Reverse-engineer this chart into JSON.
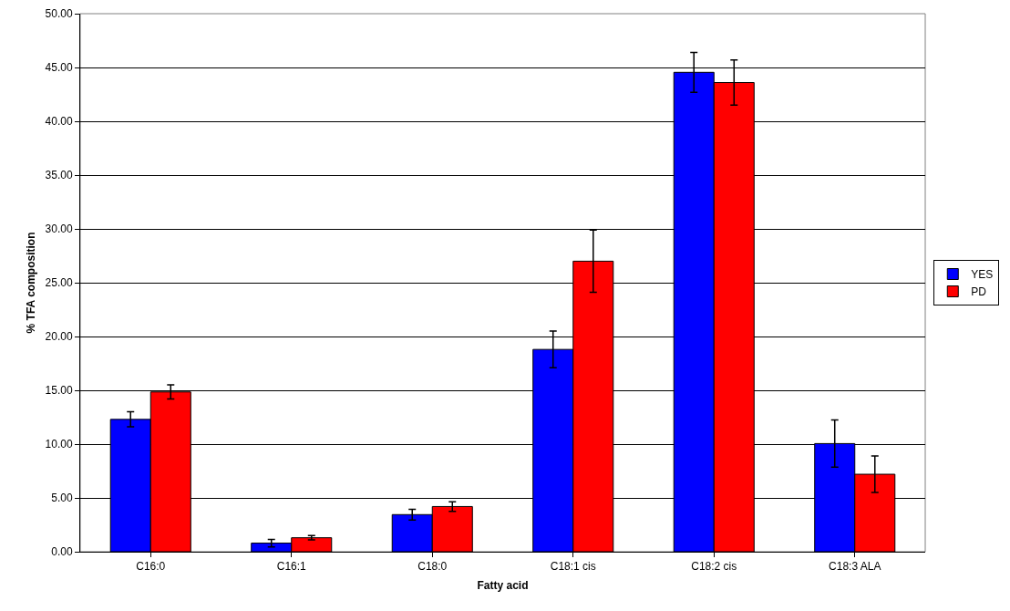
{
  "chart_data": {
    "type": "bar",
    "xlabel": "Fatty acid",
    "ylabel": "% TFA composition",
    "categories": [
      "C16:0",
      "C16:1",
      "C18:0",
      "C18:1 cis",
      "C18:2 cis",
      "C18:3 ALA"
    ],
    "series": [
      {
        "name": "YES",
        "color": "#0000ff",
        "values": [
          12.3,
          0.8,
          3.45,
          18.8,
          44.55,
          10.05
        ],
        "errors": [
          0.7,
          0.35,
          0.5,
          1.7,
          1.85,
          2.2
        ]
      },
      {
        "name": "PD",
        "color": "#ff0000",
        "values": [
          14.85,
          1.3,
          4.2,
          27.0,
          43.6,
          7.2
        ],
        "errors": [
          0.65,
          0.2,
          0.45,
          2.9,
          2.1,
          1.7
        ]
      }
    ],
    "ylim": [
      0,
      50
    ],
    "yticks": [
      {
        "value": 0,
        "label": "0.00"
      },
      {
        "value": 5,
        "label": "5.00"
      },
      {
        "value": 10,
        "label": "10.00"
      },
      {
        "value": 15,
        "label": "15.00"
      },
      {
        "value": 20,
        "label": "20.00"
      },
      {
        "value": 25,
        "label": "25.00"
      },
      {
        "value": 30,
        "label": "30.00"
      },
      {
        "value": 35,
        "label": "35.00"
      },
      {
        "value": 40,
        "label": "40.00"
      },
      {
        "value": 45,
        "label": "45.00"
      },
      {
        "value": 50,
        "label": "50.00"
      }
    ],
    "grid": "y",
    "legend": "right"
  }
}
